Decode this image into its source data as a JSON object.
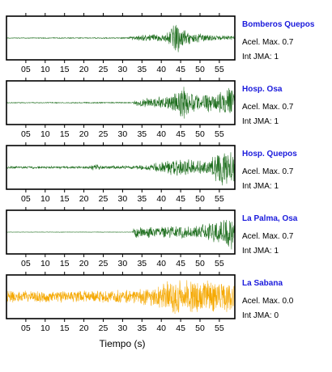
{
  "chart_data": {
    "type": "line",
    "xlabel": "Tiempo (s)",
    "xlim": [
      0,
      59
    ],
    "x_ticks": [
      5,
      10,
      15,
      20,
      25,
      30,
      35,
      40,
      45,
      50,
      55
    ],
    "x_tick_labels": [
      "05",
      "10",
      "15",
      "20",
      "25",
      "30",
      "35",
      "40",
      "45",
      "50",
      "55"
    ],
    "panels": [
      {
        "station": "Bomberos Quepos",
        "label_color": "#1a1adc",
        "accel_max_text": "Acel. Max. 0.7",
        "intensity_text": "Int JMA: 1",
        "trace_color": "#1e6e1e",
        "envelope": [
          {
            "t": 0,
            "amp": 0.02
          },
          {
            "t": 31.5,
            "amp": 0.03
          },
          {
            "t": 32,
            "amp": 0.1
          },
          {
            "t": 36,
            "amp": 0.18
          },
          {
            "t": 41,
            "amp": 0.22
          },
          {
            "t": 42.5,
            "amp": 0.55
          },
          {
            "t": 43.5,
            "amp": 1.0
          },
          {
            "t": 45,
            "amp": 0.55
          },
          {
            "t": 48,
            "amp": 0.3
          },
          {
            "t": 52,
            "amp": 0.18
          },
          {
            "t": 56,
            "amp": 0.12
          },
          {
            "t": 59,
            "amp": 0.12
          }
        ]
      },
      {
        "station": "Hosp. Osa",
        "label_color": "#1a1adc",
        "accel_max_text": "Acel. Max. 0.7",
        "intensity_text": "Int JMA: 1",
        "trace_color": "#1e6e1e",
        "envelope": [
          {
            "t": 0,
            "amp": 0.02
          },
          {
            "t": 32.5,
            "amp": 0.03
          },
          {
            "t": 34,
            "amp": 0.2
          },
          {
            "t": 39,
            "amp": 0.3
          },
          {
            "t": 42,
            "amp": 0.4
          },
          {
            "t": 45,
            "amp": 0.95
          },
          {
            "t": 47,
            "amp": 0.6
          },
          {
            "t": 50,
            "amp": 0.45
          },
          {
            "t": 55,
            "amp": 0.55
          },
          {
            "t": 57,
            "amp": 0.8
          },
          {
            "t": 59,
            "amp": 0.8
          }
        ]
      },
      {
        "station": "Hosp. Quepos",
        "label_color": "#1a1adc",
        "accel_max_text": "Acel. Max. 0.7",
        "intensity_text": "Int JMA: 1",
        "trace_color": "#1e6e1e",
        "envelope": [
          {
            "t": 0,
            "amp": 0.06
          },
          {
            "t": 21,
            "amp": 0.07
          },
          {
            "t": 23.5,
            "amp": 0.2
          },
          {
            "t": 25,
            "amp": 0.08
          },
          {
            "t": 33,
            "amp": 0.1
          },
          {
            "t": 38,
            "amp": 0.2
          },
          {
            "t": 43,
            "amp": 0.45
          },
          {
            "t": 45,
            "amp": 0.5
          },
          {
            "t": 48,
            "amp": 0.4
          },
          {
            "t": 52,
            "amp": 0.35
          },
          {
            "t": 55,
            "amp": 1.0
          },
          {
            "t": 57,
            "amp": 0.9
          },
          {
            "t": 59,
            "amp": 0.9
          }
        ]
      },
      {
        "station": "La Palma, Osa",
        "label_color": "#1a1adc",
        "accel_max_text": "Acel. Max. 0.7",
        "intensity_text": "Int JMA: 1",
        "trace_color": "#1e6e1e",
        "envelope": [
          {
            "t": 0,
            "amp": 0.01
          },
          {
            "t": 32.5,
            "amp": 0.01
          },
          {
            "t": 33.2,
            "amp": 0.35
          },
          {
            "t": 34,
            "amp": 0.3
          },
          {
            "t": 40,
            "amp": 0.28
          },
          {
            "t": 45,
            "amp": 0.35
          },
          {
            "t": 50,
            "amp": 0.4
          },
          {
            "t": 55,
            "amp": 0.6
          },
          {
            "t": 58,
            "amp": 0.95
          },
          {
            "t": 59,
            "amp": 0.95
          }
        ]
      },
      {
        "station": "La Sabana",
        "label_color": "#1a1adc",
        "accel_max_text": "Acel. Max. 0.0",
        "intensity_text": "Int JMA: 0",
        "trace_color": "#f5a800",
        "envelope": [
          {
            "t": 0,
            "amp": 0.3
          },
          {
            "t": 20,
            "amp": 0.32
          },
          {
            "t": 34,
            "amp": 0.38
          },
          {
            "t": 38,
            "amp": 0.5
          },
          {
            "t": 42,
            "amp": 0.85
          },
          {
            "t": 46,
            "amp": 0.95
          },
          {
            "t": 50,
            "amp": 0.85
          },
          {
            "t": 55,
            "amp": 0.95
          },
          {
            "t": 59,
            "amp": 0.9
          }
        ]
      }
    ]
  }
}
